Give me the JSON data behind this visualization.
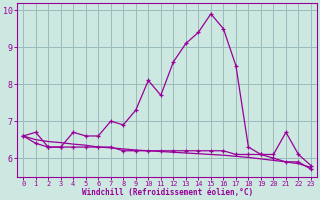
{
  "x": [
    0,
    1,
    2,
    3,
    4,
    5,
    6,
    7,
    8,
    9,
    10,
    11,
    12,
    13,
    14,
    15,
    16,
    17,
    18,
    19,
    20,
    21,
    22,
    23
  ],
  "temperature": [
    6.6,
    6.7,
    6.3,
    6.3,
    6.7,
    6.6,
    6.6,
    7.0,
    6.9,
    7.3,
    8.1,
    7.7,
    8.6,
    9.1,
    9.4,
    9.9,
    9.5,
    8.5,
    6.3,
    6.1,
    6.1,
    6.7,
    6.1,
    5.8
  ],
  "windchill": [
    6.6,
    6.4,
    6.3,
    6.3,
    6.3,
    6.3,
    6.3,
    6.3,
    6.2,
    6.2,
    6.2,
    6.2,
    6.2,
    6.2,
    6.2,
    6.2,
    6.2,
    6.1,
    6.1,
    6.1,
    6.0,
    5.9,
    5.9,
    5.7
  ],
  "decline": [
    6.6,
    6.5,
    6.45,
    6.42,
    6.38,
    6.35,
    6.3,
    6.28,
    6.25,
    6.22,
    6.2,
    6.18,
    6.16,
    6.14,
    6.12,
    6.1,
    6.08,
    6.05,
    6.02,
    5.98,
    5.94,
    5.9,
    5.85,
    5.75
  ],
  "line_color": "#990099",
  "bg_color": "#cce8e0",
  "grid_color": "#99bbbb",
  "axis_color": "#990099",
  "tick_color": "#990099",
  "xlabel": "Windchill (Refroidissement éolien,°C)",
  "ylim": [
    5.5,
    10.2
  ],
  "xlim": [
    -0.5,
    23.5
  ],
  "yticks": [
    6,
    7,
    8,
    9,
    10
  ],
  "xticks": [
    0,
    1,
    2,
    3,
    4,
    5,
    6,
    7,
    8,
    9,
    10,
    11,
    12,
    13,
    14,
    15,
    16,
    17,
    18,
    19,
    20,
    21,
    22,
    23
  ]
}
